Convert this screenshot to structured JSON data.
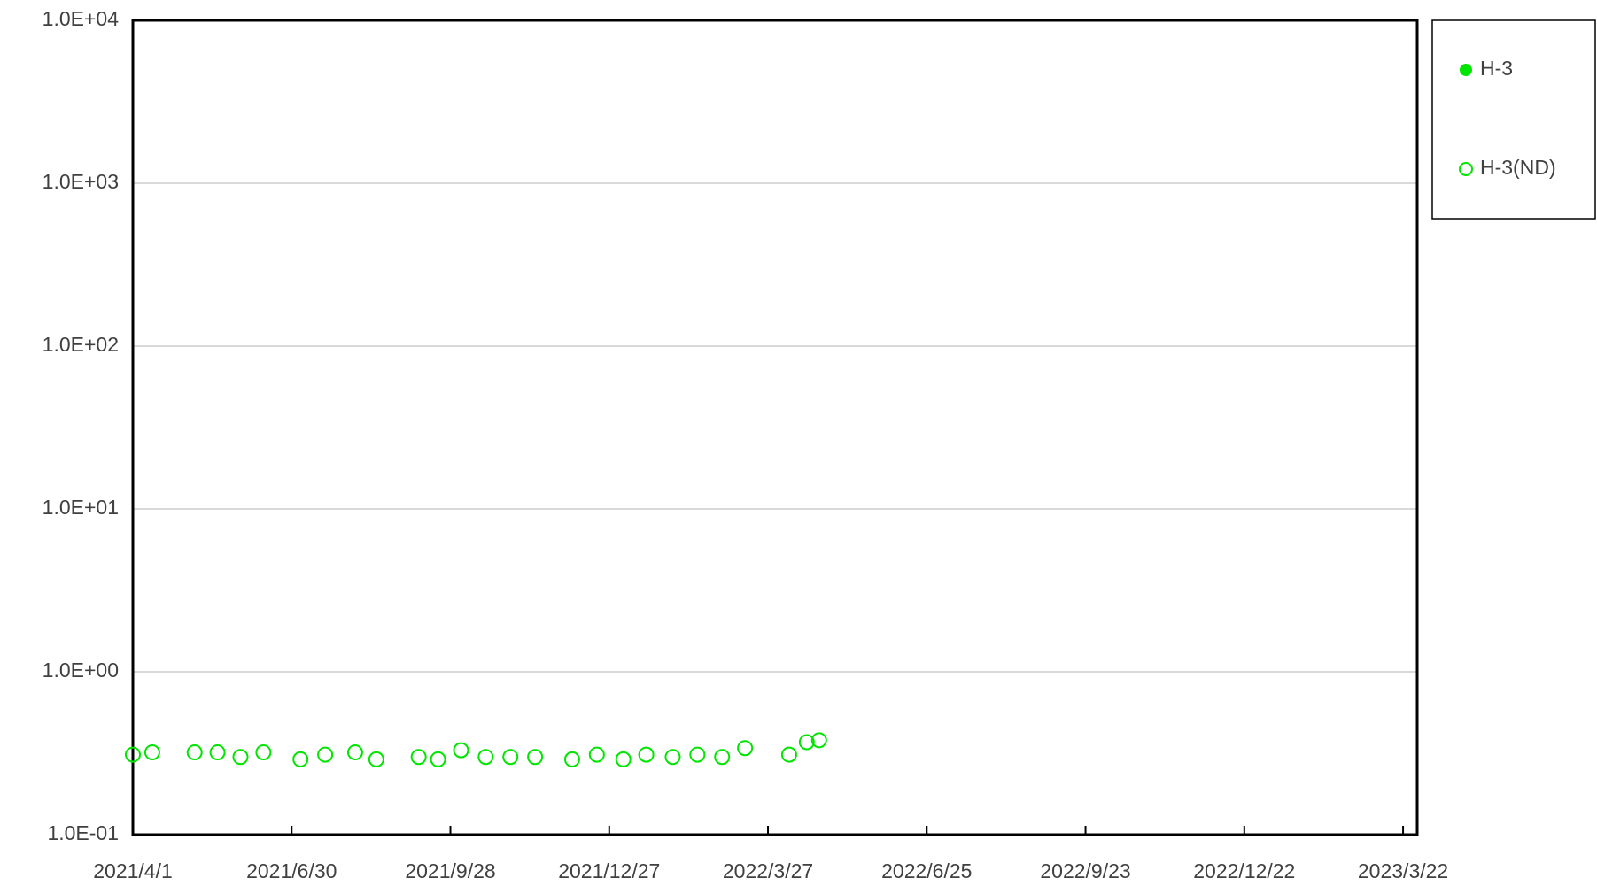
{
  "chart_data": {
    "type": "scatter",
    "xlim": [
      "2021/4/1",
      "2023/3/30"
    ],
    "xticks": [
      "2021/4/1",
      "2021/6/30",
      "2021/9/28",
      "2021/12/27",
      "2022/3/27",
      "2022/6/25",
      "2022/9/23",
      "2022/12/22",
      "2023/3/22"
    ],
    "ylim": [
      0.1,
      10000
    ],
    "log_y": true,
    "grid": true,
    "legend": "right",
    "yticks": [
      {
        "value": 0.1,
        "label": "1.0E-01"
      },
      {
        "value": 1,
        "label": "1.0E+00"
      },
      {
        "value": 10,
        "label": "1.0E+01"
      },
      {
        "value": 100,
        "label": "1.0E+02"
      },
      {
        "value": 1000,
        "label": "1.0E+03"
      },
      {
        "value": 10000,
        "label": "1.0E+04"
      }
    ],
    "series": [
      {
        "name": "H-3",
        "color": "#00e600",
        "marker": "filled",
        "x": [],
        "values": []
      },
      {
        "name": "H-3(ND)",
        "color": "#00e600",
        "marker": "open",
        "x": [
          "2021/4/1",
          "2021/4/12",
          "2021/5/6",
          "2021/5/19",
          "2021/6/1",
          "2021/6/14",
          "2021/7/5",
          "2021/7/19",
          "2021/8/5",
          "2021/8/17",
          "2021/9/10",
          "2021/9/21",
          "2021/10/4",
          "2021/10/18",
          "2021/11/1",
          "2021/11/15",
          "2021/12/6",
          "2021/12/20",
          "2022/1/4",
          "2022/1/17",
          "2022/2/1",
          "2022/2/15",
          "2022/3/1",
          "2022/3/14",
          "2022/4/8",
          "2022/4/18",
          "2022/4/25"
        ],
        "values": [
          0.31,
          0.32,
          0.32,
          0.32,
          0.3,
          0.32,
          0.29,
          0.31,
          0.32,
          0.29,
          0.3,
          0.29,
          0.33,
          0.3,
          0.3,
          0.3,
          0.29,
          0.31,
          0.29,
          0.31,
          0.3,
          0.31,
          0.3,
          0.34,
          0.31,
          0.37,
          0.38
        ]
      }
    ]
  }
}
